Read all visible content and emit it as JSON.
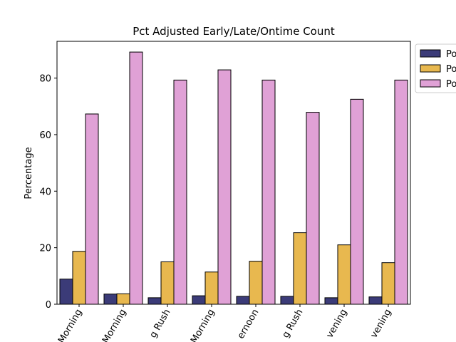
{
  "chart_data": {
    "type": "bar",
    "title": "Pct Adjusted Early/Late/Ontime Count",
    "xlabel": "",
    "ylabel": "Percentage",
    "ylim": [
      0,
      93
    ],
    "yticks": [
      0,
      20,
      40,
      60,
      80
    ],
    "categories": [
      "Morning",
      "Morning",
      "g Rush",
      "Morning",
      "ernoon",
      "g Rush",
      "vening",
      "vening"
    ],
    "series": [
      {
        "name": "Po",
        "color": "#3b3b78",
        "values": [
          8.9,
          3.6,
          2.3,
          3.0,
          2.8,
          2.8,
          2.3,
          2.6
        ]
      },
      {
        "name": "Po",
        "color": "#e8b84f",
        "values": [
          18.7,
          3.7,
          15.0,
          11.4,
          15.2,
          25.3,
          21.0,
          14.7
        ]
      },
      {
        "name": "Po",
        "color": "#e0a1d6",
        "values": [
          67.3,
          89.2,
          79.3,
          82.9,
          79.3,
          67.9,
          72.5,
          79.3
        ]
      }
    ],
    "legend_position": "top-right outside",
    "grid": false
  }
}
